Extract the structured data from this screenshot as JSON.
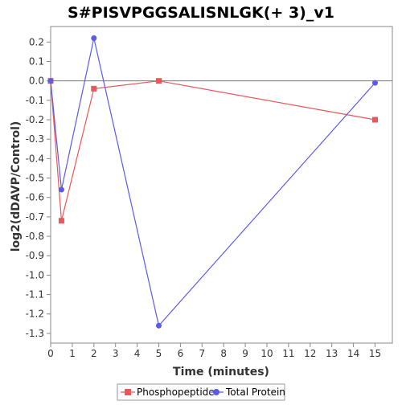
{
  "chart_data": {
    "type": "line",
    "title": "S#PISVPGGSALISNLGK(+ 3)_v1",
    "xlabel": "Time (minutes)",
    "ylabel": "log2(dDAVP/Control)",
    "xlim": [
      0,
      15.8
    ],
    "ylim": [
      -1.35,
      0.28
    ],
    "x_ticks": [
      0,
      1,
      2,
      3,
      4,
      5,
      6,
      7,
      8,
      9,
      10,
      11,
      12,
      13,
      14,
      15
    ],
    "y_ticks": [
      0.2,
      0.1,
      0.0,
      -0.1,
      -0.2,
      -0.3,
      -0.4,
      -0.5,
      -0.6,
      -0.7,
      -0.8,
      -0.9,
      -1.0,
      -1.1,
      -1.2,
      -1.3
    ],
    "y_tick_labels": [
      "0.2",
      "0.1",
      "0.0",
      "-0.1",
      "-0.2",
      "-0.3",
      "-0.4",
      "-0.5",
      "-0.6",
      "-0.7",
      "-0.8",
      "-0.9",
      "-1.0",
      "-1.1",
      "-1.2",
      "-1.3"
    ],
    "zero_line": true,
    "grid": false,
    "legend_position": "bottom",
    "series": [
      {
        "name": "Phosphopeptide",
        "color": "#e8575a",
        "marker": "square",
        "x": [
          0,
          0.5,
          2,
          5,
          15
        ],
        "y": [
          0.0,
          -0.72,
          -0.04,
          0.0,
          -0.2
        ]
      },
      {
        "name": "Total Protein",
        "color": "#5b5be8",
        "marker": "circle",
        "x": [
          0,
          0.5,
          2,
          5,
          15
        ],
        "y": [
          0.0,
          -0.56,
          0.22,
          -1.26,
          -0.01
        ]
      }
    ]
  }
}
